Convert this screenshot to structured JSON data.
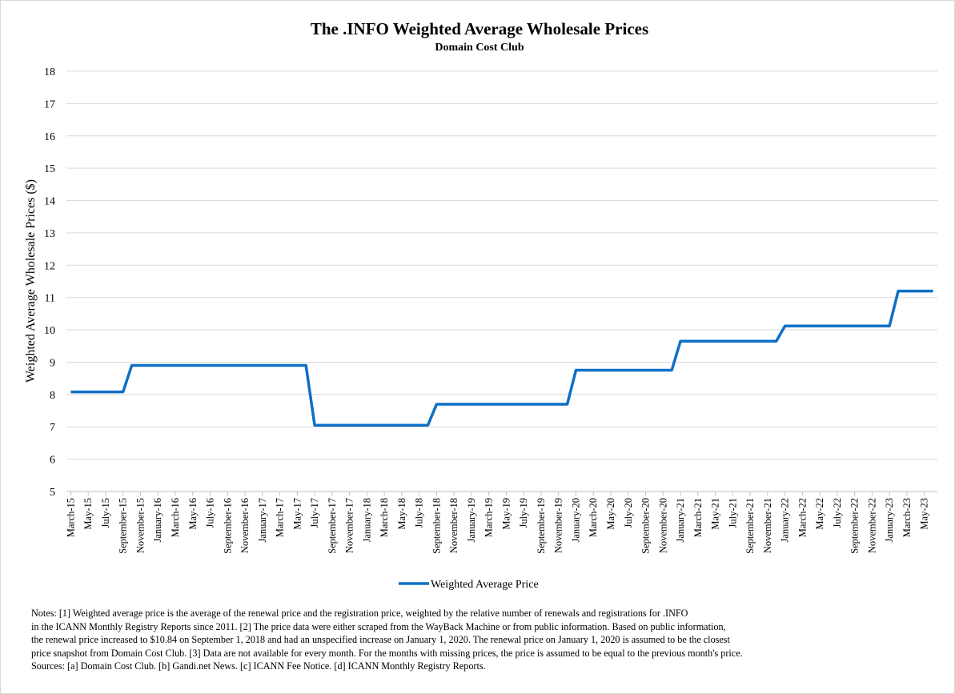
{
  "chart_data": {
    "type": "line",
    "title": "The .INFO Weighted Average Wholesale Prices",
    "subtitle": "Domain Cost Club",
    "y_label": "Weighted Average Wholesale Prices ($)",
    "categories": [
      "March-15",
      null,
      "May-15",
      null,
      "July-15",
      null,
      "September-15",
      null,
      "November-15",
      null,
      "January-16",
      null,
      "March-16",
      null,
      "May-16",
      null,
      "July-16",
      null,
      "September-16",
      null,
      "November-16",
      null,
      "January-17",
      null,
      "March-17",
      null,
      "May-17",
      null,
      "July-17",
      null,
      "September-17",
      null,
      "November-17",
      null,
      "January-18",
      null,
      "March-18",
      null,
      "May-18",
      null,
      "July-18",
      null,
      "September-18",
      null,
      "November-18",
      null,
      "January-19",
      null,
      "March-19",
      null,
      "May-19",
      null,
      "July-19",
      null,
      "September-19",
      null,
      "November-19",
      null,
      "January-20",
      null,
      "March-20",
      null,
      "May-20",
      null,
      "July-20",
      null,
      "September-20",
      null,
      "November-20",
      null,
      "January-21",
      null,
      "March-21",
      null,
      "May-21",
      null,
      "July-21",
      null,
      "September-21",
      null,
      "November-21",
      null,
      "January-22",
      null,
      "March-22",
      null,
      "May-22",
      null,
      "July-22",
      null,
      "September-22",
      null,
      "November-22",
      null,
      "January-23",
      null,
      "March-23",
      null,
      "May-23",
      null
    ],
    "series": [
      {
        "name": "Weighted Average Price",
        "color": "#0f6fc6",
        "values": [
          8.08,
          8.08,
          8.08,
          8.08,
          8.08,
          8.08,
          8.08,
          8.9,
          8.9,
          8.9,
          8.9,
          8.9,
          8.9,
          8.9,
          8.9,
          8.9,
          8.9,
          8.9,
          8.9,
          8.9,
          8.9,
          8.9,
          8.9,
          8.9,
          8.9,
          8.9,
          8.9,
          8.9,
          7.05,
          7.05,
          7.05,
          7.05,
          7.05,
          7.05,
          7.05,
          7.05,
          7.05,
          7.05,
          7.05,
          7.05,
          7.05,
          7.05,
          7.7,
          7.7,
          7.7,
          7.7,
          7.7,
          7.7,
          7.7,
          7.7,
          7.7,
          7.7,
          7.7,
          7.7,
          7.7,
          7.7,
          7.7,
          7.7,
          8.75,
          8.75,
          8.75,
          8.75,
          8.75,
          8.75,
          8.75,
          8.75,
          8.75,
          8.75,
          8.75,
          8.75,
          9.65,
          9.65,
          9.65,
          9.65,
          9.65,
          9.65,
          9.65,
          9.65,
          9.65,
          9.65,
          9.65,
          9.65,
          10.12,
          10.12,
          10.12,
          10.12,
          10.12,
          10.12,
          10.12,
          10.12,
          10.12,
          10.12,
          10.12,
          10.12,
          10.12,
          11.2,
          11.2,
          11.2,
          11.2,
          11.2
        ]
      }
    ],
    "ylim": [
      5,
      18
    ],
    "yticks": [
      5,
      6,
      7,
      8,
      9,
      10,
      11,
      12,
      13,
      14,
      15,
      16,
      17,
      18
    ],
    "grid": true,
    "legend": "bottom",
    "notes": [
      "Notes: [1] Weighted average price is the average of the renewal price and the registration price, weighted by the relative number of renewals and registrations for .INFO",
      "in the ICANN Monthly Registry Reports since 2011. [2] The price data were either scraped from the WayBack Machine or from public information. Based on public information,",
      "the renewal price increased to $10.84 on September 1, 2018 and had an unspecified increase on January 1, 2020. The renewal price on January 1, 2020 is assumed to be the closest",
      "price snapshot from Domain Cost Club. [3] Data are not available for every month. For the months with missing prices, the price is assumed to be equal to the previous month's price.",
      "Sources: [a] Domain Cost Club. [b] Gandi.net News. [c] ICANN Fee Notice. [d] ICANN Monthly Registry Reports."
    ]
  }
}
